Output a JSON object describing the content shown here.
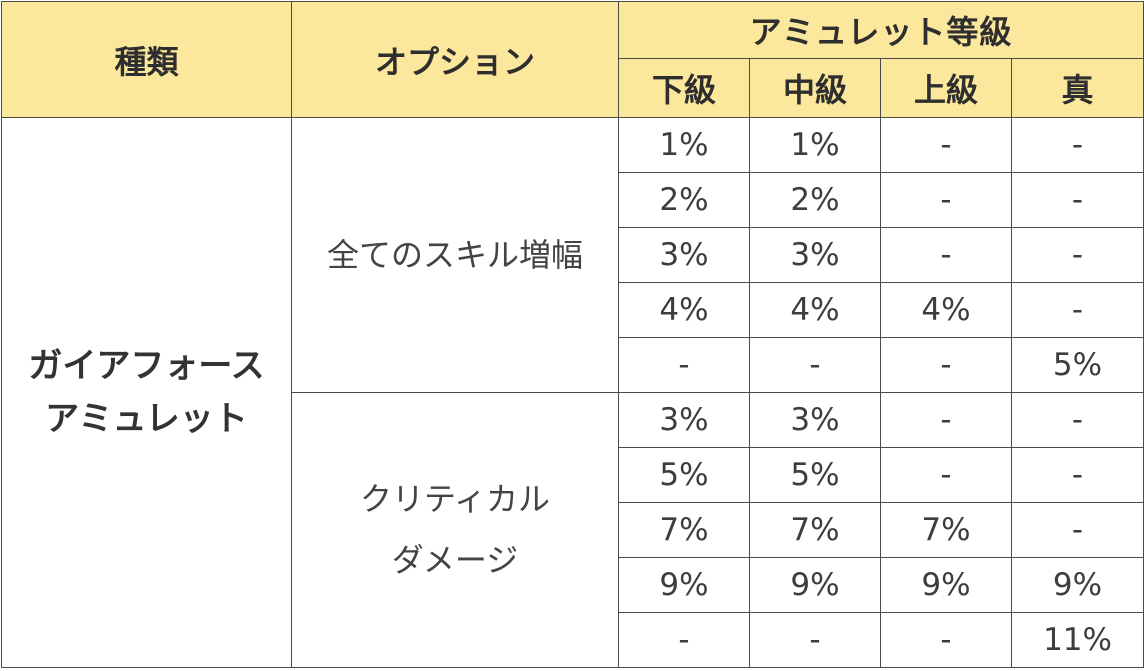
{
  "header": {
    "type": "種類",
    "option": "オプション",
    "grade_group": "アミュレット等級",
    "grades": [
      "下級",
      "中級",
      "上級",
      "真"
    ]
  },
  "type_name_lines": [
    "ガイアフォース",
    "アミュレット"
  ],
  "options": [
    {
      "name_lines": [
        "全てのスキル増幅"
      ],
      "rows": [
        [
          "1%",
          "1%",
          "-",
          "-"
        ],
        [
          "2%",
          "2%",
          "-",
          "-"
        ],
        [
          "3%",
          "3%",
          "-",
          "-"
        ],
        [
          "4%",
          "4%",
          "4%",
          "-"
        ],
        [
          "-",
          "-",
          "-",
          "5%"
        ]
      ]
    },
    {
      "name_lines": [
        "クリティカル",
        "ダメージ"
      ],
      "rows": [
        [
          "3%",
          "3%",
          "-",
          "-"
        ],
        [
          "5%",
          "5%",
          "-",
          "-"
        ],
        [
          "7%",
          "7%",
          "7%",
          "-"
        ],
        [
          "9%",
          "9%",
          "9%",
          "9%"
        ],
        [
          "-",
          "-",
          "-",
          "11%"
        ]
      ]
    }
  ]
}
